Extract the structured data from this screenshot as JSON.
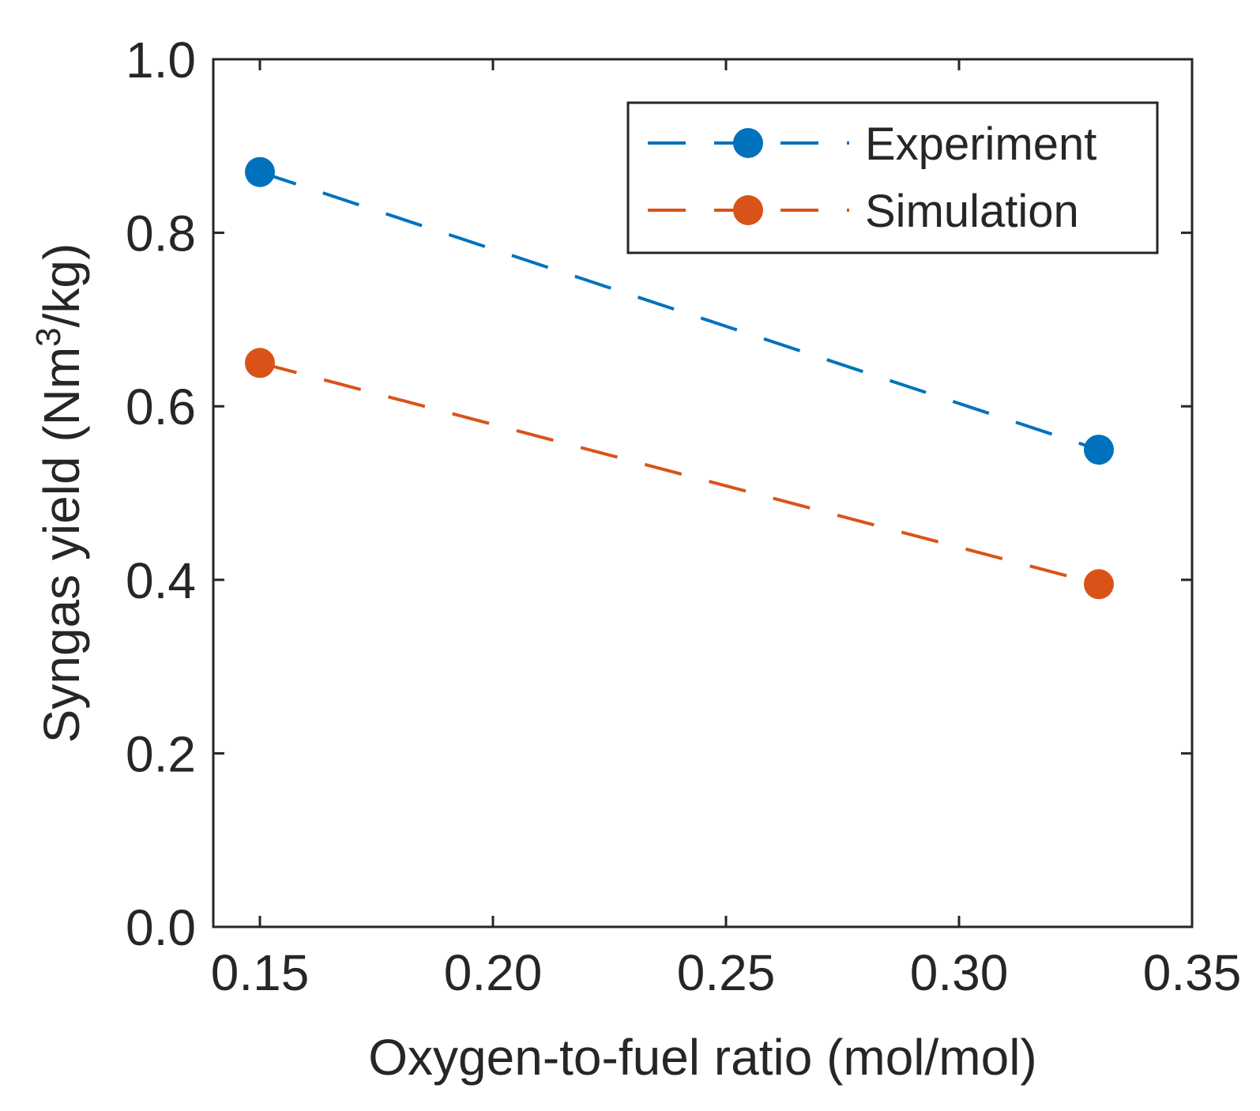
{
  "chart_data": {
    "type": "line",
    "title": "",
    "xlabel": "Oxygen-to-fuel ratio (mol/mol)",
    "ylabel": {
      "prefix": "Syngas yield (Nm",
      "superscript": "3",
      "suffix": "/kg)"
    },
    "x": [
      0.15,
      0.33
    ],
    "xlim": [
      0.14,
      0.35
    ],
    "ylim": [
      0.0,
      1.0
    ],
    "xticks": [
      0.15,
      0.2,
      0.25,
      0.3,
      0.35
    ],
    "xtick_labels": [
      "0.15",
      "0.20",
      "0.25",
      "0.30",
      "0.35"
    ],
    "yticks": [
      0.0,
      0.2,
      0.4,
      0.6,
      0.8,
      1.0
    ],
    "ytick_labels": [
      "0.0",
      "0.2",
      "0.4",
      "0.6",
      "0.8",
      "1.0"
    ],
    "grid": false,
    "legend_position": "top-right",
    "series": [
      {
        "name": "Experiment",
        "values": [
          0.87,
          0.55
        ],
        "color": "#0072BD",
        "line_style": "dashed",
        "marker": "circle"
      },
      {
        "name": "Simulation",
        "values": [
          0.65,
          0.395
        ],
        "color": "#D95319",
        "line_style": "dashed",
        "marker": "circle"
      }
    ]
  }
}
